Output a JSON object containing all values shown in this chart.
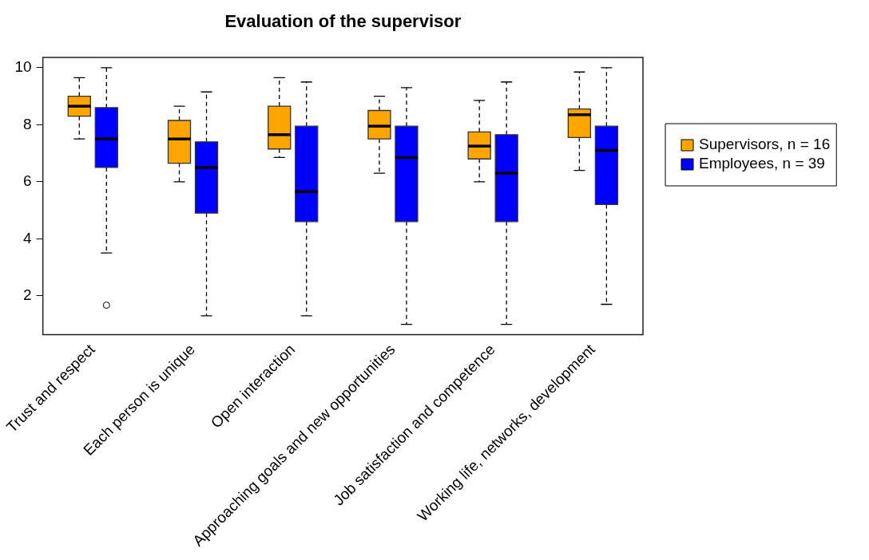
{
  "chart_data": {
    "type": "box",
    "title": "Evaluation of the supervisor",
    "categories": [
      "Trust and respect",
      "Each person is unique",
      "Open interaction",
      "Approaching goals and new opportunities",
      "Job satisfaction and competence",
      "Working life, networks, development"
    ],
    "series": [
      {
        "name": "Supervisors, n = 16",
        "color": "#ffa500",
        "boxes": [
          {
            "low": 7.5,
            "q1": 8.3,
            "median": 8.65,
            "q3": 9,
            "high": 9.65
          },
          {
            "low": 6,
            "q1": 6.65,
            "median": 7.5,
            "q3": 8.15,
            "high": 8.65
          },
          {
            "low": 6.85,
            "q1": 7.15,
            "median": 7.65,
            "q3": 8.65,
            "high": 9.65
          },
          {
            "low": 6.3,
            "q1": 7.5,
            "median": 7.95,
            "q3": 8.5,
            "high": 9
          },
          {
            "low": 6,
            "q1": 6.8,
            "median": 7.25,
            "q3": 7.75,
            "high": 8.85
          },
          {
            "low": 6.4,
            "q1": 7.55,
            "median": 8.35,
            "q3": 8.55,
            "high": 9.85
          }
        ]
      },
      {
        "name": "Employees, n = 39",
        "color": "#0000ff",
        "boxes": [
          {
            "low": 3.5,
            "q1": 6.5,
            "median": 7.5,
            "q3": 8.6,
            "high": 10,
            "outliers": [
              1.67
            ]
          },
          {
            "low": 1.3,
            "q1": 4.9,
            "median": 6.5,
            "q3": 7.4,
            "high": 9.15
          },
          {
            "low": 1.3,
            "q1": 4.6,
            "median": 5.65,
            "q3": 7.95,
            "high": 9.5
          },
          {
            "low": 1,
            "q1": 4.6,
            "median": 6.85,
            "q3": 7.95,
            "high": 9.3
          },
          {
            "low": 1,
            "q1": 4.6,
            "median": 6.3,
            "q3": 7.65,
            "high": 9.5
          },
          {
            "low": 1.7,
            "q1": 5.2,
            "median": 7.1,
            "q3": 7.95,
            "high": 10
          }
        ]
      }
    ],
    "ylim": [
      0.64,
      10.36
    ],
    "yticks": [
      2,
      4,
      6,
      8,
      10
    ],
    "legend": "right"
  }
}
